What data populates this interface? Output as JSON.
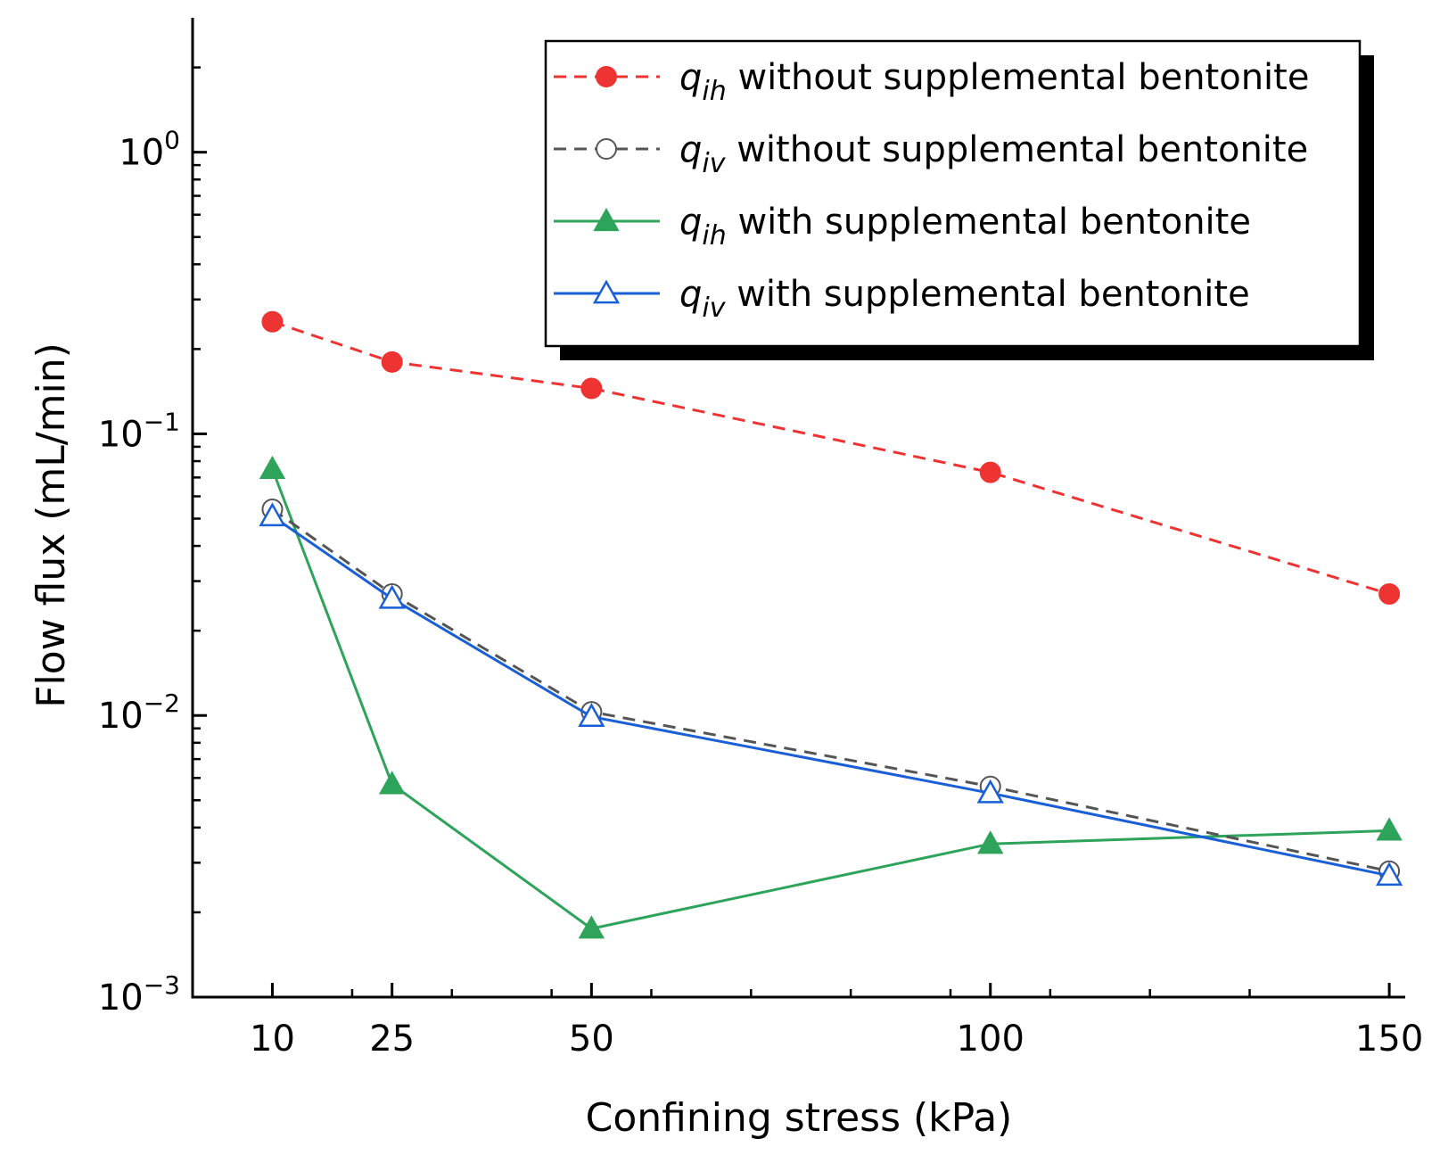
{
  "chart_data": {
    "type": "line",
    "title": "",
    "xlabel": "Confining stress (kPa)",
    "ylabel": "Flow flux (mL/min)",
    "yscale": "log",
    "ylim": [
      0.001,
      3
    ],
    "xlim": [
      0,
      152
    ],
    "x": [
      10,
      25,
      50,
      100,
      150
    ],
    "x_tick_labels": [
      "10",
      "25",
      "50",
      "100",
      "150"
    ],
    "y_ticks": [
      {
        "value": 0.001,
        "base": "10",
        "exp": "−3"
      },
      {
        "value": 0.01,
        "base": "10",
        "exp": "−2"
      },
      {
        "value": 0.1,
        "base": "10",
        "exp": "−1"
      },
      {
        "value": 1,
        "base": "10",
        "exp": "0"
      }
    ],
    "legend_position": "top-right",
    "series": [
      {
        "name": "q_ih without supplemental bentonite",
        "symbol": "q",
        "subscript": "ih",
        "label_text": "without supplemental bentonite",
        "color": "#ee3333",
        "line_style": "dashed",
        "marker": "filled-circle",
        "values": [
          0.25,
          0.18,
          0.145,
          0.073,
          0.027
        ]
      },
      {
        "name": "q_iv without supplemental bentonite",
        "symbol": "q",
        "subscript": "iv",
        "label_text": "without supplemental bentonite",
        "color": "#555555",
        "line_style": "dashed",
        "marker": "open-circle",
        "values": [
          0.054,
          0.027,
          0.0103,
          0.0056,
          0.0028
        ]
      },
      {
        "name": "q_ih with supplemental bentonite",
        "symbol": "q",
        "subscript": "ih",
        "label_text": "with supplemental bentonite",
        "color": "#2ea35a",
        "line_style": "solid",
        "marker": "filled-triangle",
        "values": [
          0.075,
          0.0057,
          0.00175,
          0.0035,
          0.0039
        ]
      },
      {
        "name": "q_iv with supplemental bentonite",
        "symbol": "q",
        "subscript": "iv",
        "label_text": "with supplemental bentonite",
        "color": "#1a5fd6",
        "line_style": "solid",
        "marker": "open-triangle",
        "values": [
          0.051,
          0.026,
          0.0099,
          0.0053,
          0.0027
        ]
      }
    ]
  }
}
